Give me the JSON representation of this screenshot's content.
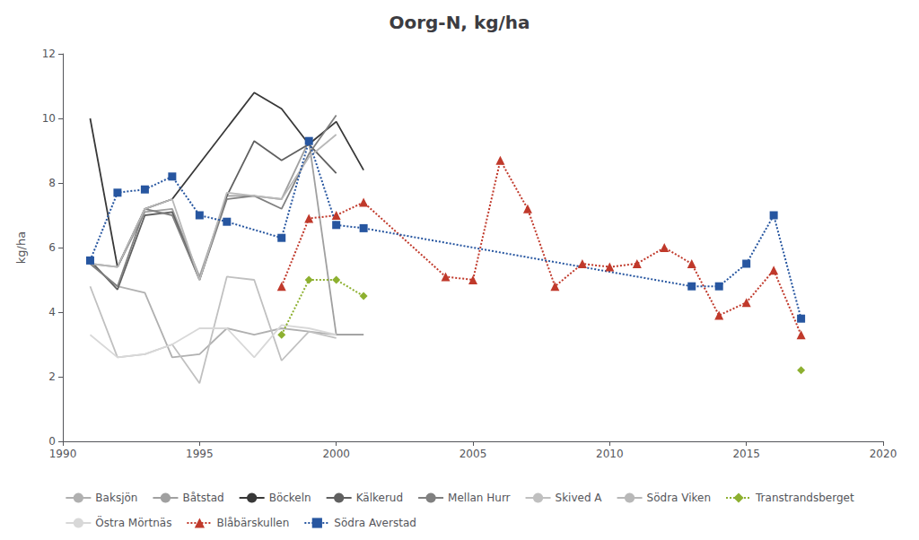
{
  "chart_data": {
    "type": "line",
    "title": "Oorg-N, kg/ha",
    "ylabel": "kg/ha",
    "xlim": [
      1990,
      2020
    ],
    "xticks": [
      1990,
      1995,
      2000,
      2005,
      2010,
      2015,
      2020
    ],
    "ylim": [
      0,
      12
    ],
    "yticks": [
      0,
      2,
      4,
      6,
      8,
      10,
      12
    ],
    "grid": false,
    "legend": "bottom",
    "series": [
      {
        "name": "Baksjön",
        "color": "#b0b0b0",
        "line_style": "solid",
        "x": [
          1991,
          1992,
          1993,
          1994,
          1995,
          1996,
          1997,
          1998,
          1999,
          2000,
          2001
        ],
        "values": [
          5.5,
          4.8,
          4.6,
          2.6,
          2.7,
          3.5,
          3.3,
          3.5,
          3.4,
          3.3,
          3.3
        ]
      },
      {
        "name": "Båtstad",
        "color": "#a0a0a0",
        "line_style": "solid",
        "x": [
          1991,
          1992,
          1993,
          1994,
          1995,
          1996,
          1997,
          1998,
          1999,
          2000,
          2001
        ],
        "values": [
          5.5,
          5.4,
          7.1,
          7.2,
          5.1,
          7.6,
          7.6,
          7.5,
          9.3,
          3.3,
          3.3
        ]
      },
      {
        "name": "Böckeln",
        "color": "#383838",
        "line_style": "solid",
        "x": [
          1991,
          1992,
          1993,
          1994,
          1997,
          1998,
          1999,
          2000,
          2001
        ],
        "values": [
          10.0,
          5.4,
          7.2,
          7.5,
          10.8,
          10.3,
          9.2,
          9.9,
          8.4
        ]
      },
      {
        "name": "Kälkerud",
        "color": "#606060",
        "line_style": "solid",
        "x": [
          1991,
          1992,
          1993,
          1994,
          1995,
          1996,
          1997,
          1998,
          1999,
          2000,
          2001
        ],
        "values": [
          5.6,
          4.7,
          7.0,
          7.1,
          5.0,
          7.6,
          9.3,
          8.7,
          9.2,
          8.3,
          null
        ]
      },
      {
        "name": "Mellan Hurr",
        "color": "#808080",
        "line_style": "solid",
        "x": [
          1991,
          1992,
          1993,
          1994,
          1995,
          1996,
          1997,
          1998,
          1999,
          2000,
          2001
        ],
        "values": [
          5.5,
          4.8,
          7.2,
          7.0,
          5.0,
          7.5,
          7.6,
          7.2,
          8.9,
          10.1,
          null
        ]
      },
      {
        "name": "Skived A",
        "color": "#c0c0c0",
        "line_style": "solid",
        "x": [
          1991,
          1992,
          1993,
          1994,
          1995,
          1996,
          1997,
          1998,
          1999,
          2000,
          2001
        ],
        "values": [
          4.8,
          2.6,
          2.7,
          3.0,
          1.8,
          5.1,
          5.0,
          2.5,
          3.4,
          3.2,
          null
        ]
      },
      {
        "name": "Södra Viken",
        "color": "#b8b8b8",
        "line_style": "solid",
        "x": [
          1991,
          1992,
          1993,
          1994,
          1995,
          1996,
          1997,
          1998,
          1999,
          2000,
          2001
        ],
        "values": [
          5.5,
          5.4,
          7.2,
          7.5,
          5.0,
          7.7,
          7.6,
          7.5,
          8.8,
          9.5,
          null
        ]
      },
      {
        "color": "#8db030",
        "line_style": "dotted",
        "marker": "diamond",
        "x": [
          1998,
          1999,
          2000,
          2001
        ],
        "values": [
          3.3,
          5.0,
          5.0,
          4.5
        ]
      },
      {
        "name": "Transtrandsberget",
        "color": "#8db030",
        "line_style": "dotted",
        "marker": "diamond",
        "x": [
          2017
        ],
        "values": [
          2.2
        ]
      },
      {
        "name": "Östra Mörtnäs",
        "color": "#d8d8d8",
        "line_style": "solid",
        "x": [
          1991,
          1992,
          1993,
          1994,
          1995,
          1996,
          1997,
          1998,
          1999,
          2000,
          2001
        ],
        "values": [
          3.3,
          2.6,
          2.7,
          3.0,
          3.5,
          3.5,
          2.6,
          3.6,
          3.5,
          3.3,
          null
        ]
      },
      {
        "name": "Blåbärskullen",
        "color": "#c0392b",
        "line_style": "dotted",
        "marker": "triangle",
        "x": [
          1998,
          1999,
          2000,
          2001,
          2004,
          2005,
          2006,
          2007,
          2008,
          2009,
          2010,
          2011,
          2012,
          2013,
          2014,
          2015,
          2016,
          2017
        ],
        "values": [
          4.8,
          6.9,
          7.0,
          7.4,
          5.1,
          5.0,
          8.7,
          7.2,
          4.8,
          5.5,
          5.4,
          5.5,
          6.0,
          5.5,
          3.9,
          4.3,
          5.3,
          3.3
        ]
      },
      {
        "name": "Södra Averstad",
        "color": "#2756a0",
        "line_style": "dotted",
        "marker": "square",
        "x": [
          1991,
          1992,
          1993,
          1994,
          1995,
          1996,
          1998,
          1999,
          2000,
          2001,
          2013,
          2014,
          2015,
          2016,
          2017
        ],
        "values": [
          5.6,
          7.7,
          7.8,
          8.2,
          7.0,
          6.8,
          6.3,
          9.3,
          6.7,
          6.6,
          4.8,
          4.8,
          5.5,
          7.0,
          3.8
        ]
      }
    ]
  }
}
